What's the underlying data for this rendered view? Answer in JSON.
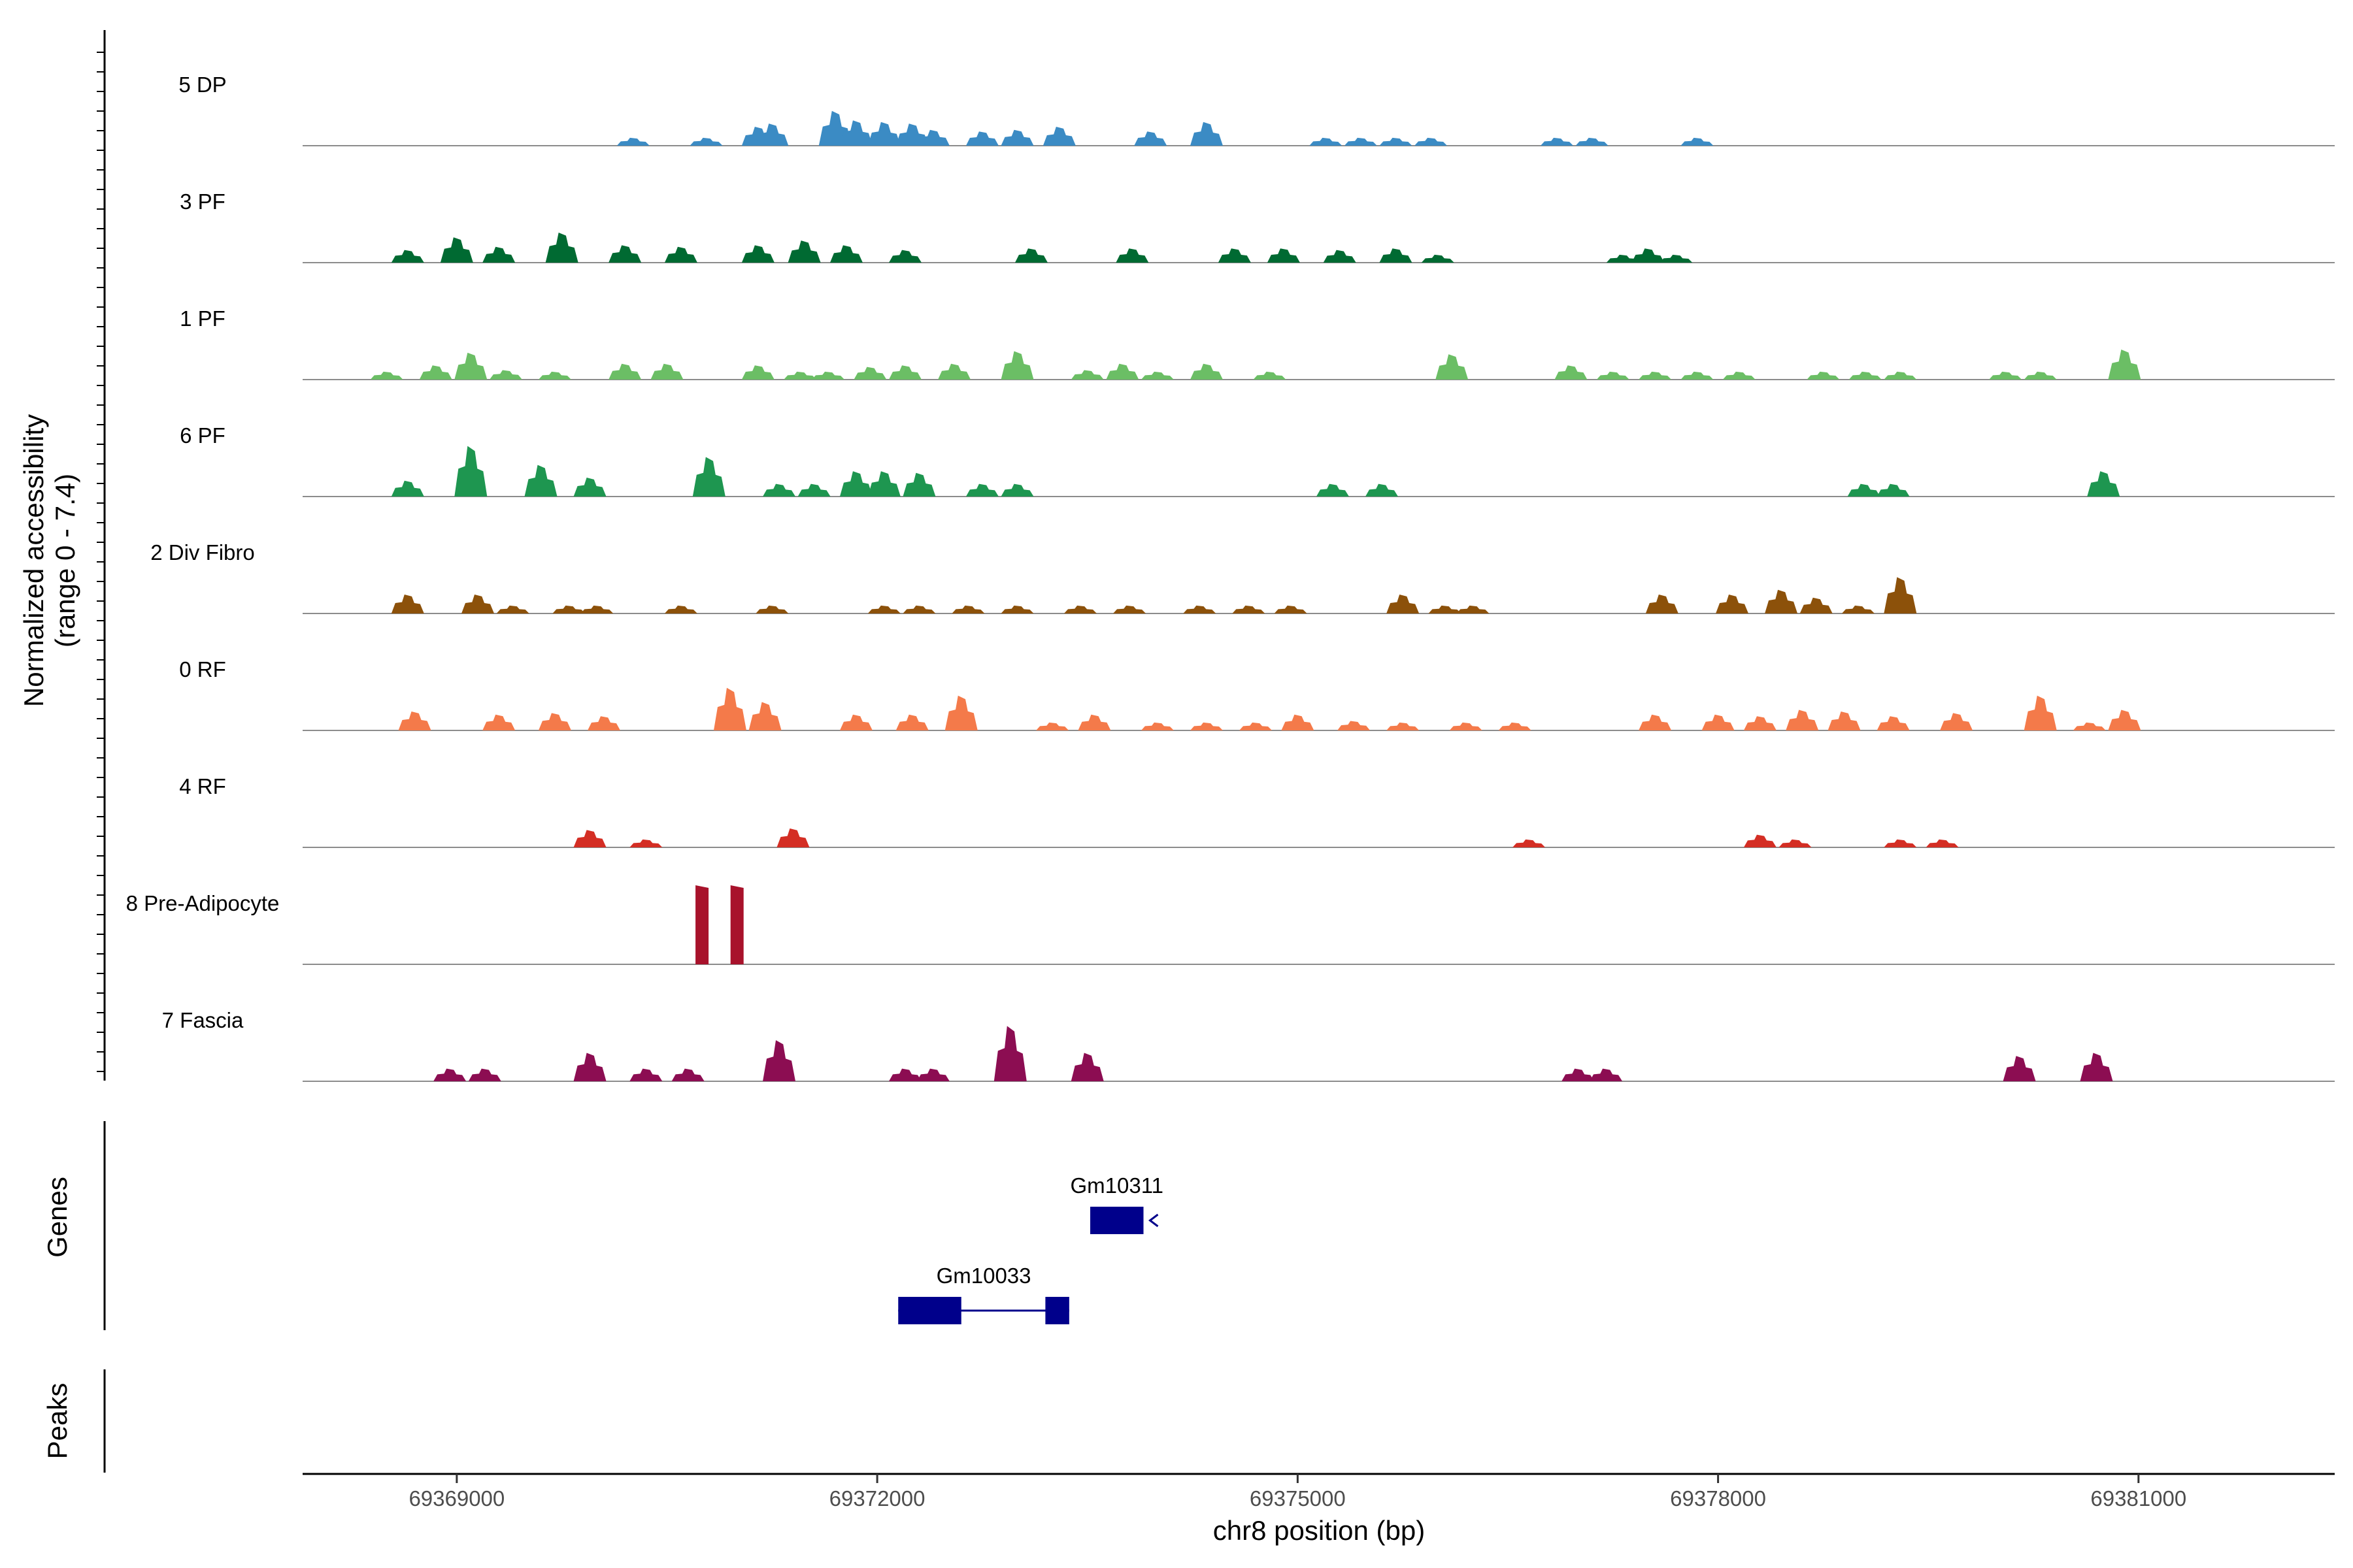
{
  "chart_data": {
    "type": "area",
    "title": "",
    "chromosome": "chr8",
    "xlabel": "chr8 position (bp)",
    "ylabel_line1": "Normalized accessibility",
    "ylabel_line2": "(range 0 - 7.4)",
    "xlim": [
      69367900,
      69382400
    ],
    "ylim": [
      0,
      7.4
    ],
    "x_ticks": [
      69369000,
      69372000,
      69375000,
      69378000,
      69381000
    ],
    "x_tick_labels": [
      "69369000",
      "69372000",
      "69375000",
      "69378000",
      "69381000"
    ],
    "genes_label": "Genes",
    "peaks_label": "Peaks",
    "tracks": [
      {
        "name": "5 DP",
        "color": "#3b8bc4",
        "peaks": [
          [
            69370259,
            0.5
          ],
          [
            69370780,
            0.5
          ],
          [
            69371150,
            1.2
          ],
          [
            69371250,
            1.4
          ],
          [
            69371700,
            2.2
          ],
          [
            69371850,
            1.6
          ],
          [
            69372050,
            1.5
          ],
          [
            69372250,
            1.4
          ],
          [
            69372400,
            1.0
          ],
          [
            69372750,
            0.9
          ],
          [
            69373000,
            1.0
          ],
          [
            69373300,
            1.2
          ],
          [
            69373950,
            0.9
          ],
          [
            69374350,
            1.5
          ],
          [
            69375200,
            0.5
          ],
          [
            69375450,
            0.5
          ],
          [
            69375700,
            0.5
          ],
          [
            69375950,
            0.5
          ],
          [
            69376850,
            0.5
          ],
          [
            69377100,
            0.5
          ],
          [
            69377850,
            0.5
          ]
        ]
      },
      {
        "name": "3 PF",
        "color": "#006a32",
        "peaks": [
          [
            69368650,
            0.8
          ],
          [
            69369000,
            1.6
          ],
          [
            69369300,
            1.0
          ],
          [
            69369750,
            1.9
          ],
          [
            69370200,
            1.1
          ],
          [
            69370600,
            1.0
          ],
          [
            69371150,
            1.1
          ],
          [
            69371480,
            1.4
          ],
          [
            69371780,
            1.1
          ],
          [
            69372200,
            0.8
          ],
          [
            69373100,
            0.9
          ],
          [
            69373820,
            0.9
          ],
          [
            69374550,
            0.9
          ],
          [
            69374900,
            0.9
          ],
          [
            69375300,
            0.8
          ],
          [
            69375700,
            0.9
          ],
          [
            69376000,
            0.5
          ],
          [
            69377320,
            0.5
          ],
          [
            69377500,
            0.9
          ],
          [
            69377700,
            0.5
          ]
        ]
      },
      {
        "name": "1 PF",
        "color": "#6bbe65",
        "peaks": [
          [
            69368500,
            0.5
          ],
          [
            69368850,
            0.9
          ],
          [
            69369100,
            1.7
          ],
          [
            69369350,
            0.6
          ],
          [
            69369700,
            0.5
          ],
          [
            69370200,
            1.0
          ],
          [
            69370500,
            1.0
          ],
          [
            69371150,
            0.9
          ],
          [
            69371450,
            0.5
          ],
          [
            69371650,
            0.5
          ],
          [
            69371950,
            0.8
          ],
          [
            69372200,
            0.9
          ],
          [
            69372550,
            1.0
          ],
          [
            69373000,
            1.8
          ],
          [
            69373500,
            0.6
          ],
          [
            69373750,
            1.0
          ],
          [
            69374000,
            0.5
          ],
          [
            69374350,
            1.0
          ],
          [
            69374800,
            0.5
          ],
          [
            69376100,
            1.6
          ],
          [
            69376950,
            0.9
          ],
          [
            69377250,
            0.5
          ],
          [
            69377550,
            0.5
          ],
          [
            69377850,
            0.5
          ],
          [
            69378150,
            0.5
          ],
          [
            69378750,
            0.5
          ],
          [
            69379050,
            0.5
          ],
          [
            69379300,
            0.5
          ],
          [
            69380050,
            0.5
          ],
          [
            69380300,
            0.5
          ],
          [
            69380900,
            1.9
          ]
        ]
      },
      {
        "name": "6 PF",
        "color": "#1e9650",
        "peaks": [
          [
            69368650,
            1.0
          ],
          [
            69369100,
            3.2
          ],
          [
            69369600,
            2.0
          ],
          [
            69369950,
            1.2
          ],
          [
            69370800,
            2.5
          ],
          [
            69371300,
            0.8
          ],
          [
            69371550,
            0.8
          ],
          [
            69371850,
            1.6
          ],
          [
            69372050,
            1.6
          ],
          [
            69372300,
            1.5
          ],
          [
            69372750,
            0.8
          ],
          [
            69373000,
            0.8
          ],
          [
            69375250,
            0.8
          ],
          [
            69375600,
            0.8
          ],
          [
            69379040,
            0.8
          ],
          [
            69379250,
            0.8
          ],
          [
            69380750,
            1.6
          ]
        ]
      },
      {
        "name": "2 Div Fibro",
        "color": "#8c510a",
        "peaks": [
          [
            69368650,
            1.2
          ],
          [
            69369150,
            1.2
          ],
          [
            69369400,
            0.5
          ],
          [
            69369800,
            0.5
          ],
          [
            69370000,
            0.5
          ],
          [
            69370600,
            0.5
          ],
          [
            69371250,
            0.5
          ],
          [
            69372050,
            0.5
          ],
          [
            69372300,
            0.5
          ],
          [
            69372650,
            0.5
          ],
          [
            69373000,
            0.5
          ],
          [
            69373450,
            0.5
          ],
          [
            69373800,
            0.5
          ],
          [
            69374300,
            0.5
          ],
          [
            69374650,
            0.5
          ],
          [
            69374950,
            0.5
          ],
          [
            69375750,
            1.2
          ],
          [
            69376050,
            0.5
          ],
          [
            69376250,
            0.5
          ],
          [
            69377600,
            1.2
          ],
          [
            69378100,
            1.2
          ],
          [
            69378450,
            1.5
          ],
          [
            69378700,
            1.0
          ],
          [
            69379000,
            0.5
          ],
          [
            69379300,
            2.3
          ]
        ]
      },
      {
        "name": "0 RF",
        "color": "#f47a4a",
        "peaks": [
          [
            69368700,
            1.2
          ],
          [
            69369300,
            1.0
          ],
          [
            69369700,
            1.1
          ],
          [
            69370050,
            0.9
          ],
          [
            69370950,
            2.7
          ],
          [
            69371200,
            1.8
          ],
          [
            69371850,
            1.0
          ],
          [
            69372250,
            1.0
          ],
          [
            69372600,
            2.2
          ],
          [
            69373250,
            0.5
          ],
          [
            69373550,
            1.0
          ],
          [
            69374000,
            0.5
          ],
          [
            69374350,
            0.5
          ],
          [
            69374700,
            0.5
          ],
          [
            69375000,
            1.0
          ],
          [
            69375400,
            0.6
          ],
          [
            69375750,
            0.5
          ],
          [
            69376200,
            0.5
          ],
          [
            69376550,
            0.5
          ],
          [
            69377550,
            1.0
          ],
          [
            69378000,
            1.0
          ],
          [
            69378300,
            0.9
          ],
          [
            69378600,
            1.3
          ],
          [
            69378900,
            1.2
          ],
          [
            69379250,
            0.9
          ],
          [
            69379700,
            1.1
          ],
          [
            69380300,
            2.2
          ],
          [
            69380650,
            0.5
          ],
          [
            69380900,
            1.3
          ]
        ]
      },
      {
        "name": "4 RF",
        "color": "#d42e24",
        "peaks": [
          [
            69369950,
            1.1
          ],
          [
            69370350,
            0.5
          ],
          [
            69371400,
            1.2
          ],
          [
            69376650,
            0.5
          ],
          [
            69378300,
            0.8
          ],
          [
            69378550,
            0.5
          ],
          [
            69379300,
            0.5
          ],
          [
            69379600,
            0.5
          ]
        ]
      },
      {
        "name": "8 Pre-Adipocyte",
        "color": "#a8122b",
        "peaks": [
          [
            69370750,
            5.0
          ],
          [
            69371000,
            5.0
          ]
        ]
      },
      {
        "name": "7 Fascia",
        "color": "#8c0d52",
        "peaks": [
          [
            69368950,
            0.8
          ],
          [
            69369200,
            0.8
          ],
          [
            69369950,
            1.8
          ],
          [
            69370350,
            0.8
          ],
          [
            69370650,
            0.8
          ],
          [
            69371300,
            2.6
          ],
          [
            69372200,
            0.8
          ],
          [
            69372400,
            0.8
          ],
          [
            69372950,
            3.5
          ],
          [
            69373500,
            1.8
          ],
          [
            69377000,
            0.8
          ],
          [
            69377200,
            0.8
          ],
          [
            69380150,
            1.6
          ],
          [
            69380700,
            1.8
          ]
        ]
      }
    ],
    "genes": [
      {
        "name": "Gm10311",
        "start": 69373520,
        "end": 69373900,
        "strand": "-",
        "exons": [
          [
            69373520,
            69373900
          ]
        ],
        "row": 0
      },
      {
        "name": "Gm10033",
        "start": 69372150,
        "end": 69373370,
        "strand": "-",
        "exons": [
          [
            69372150,
            69372600
          ],
          [
            69373200,
            69373370
          ]
        ],
        "row": 1
      }
    ]
  }
}
